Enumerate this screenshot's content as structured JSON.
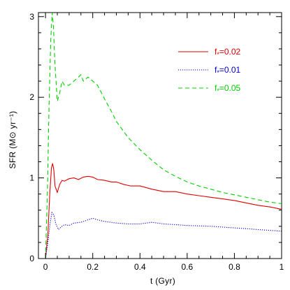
{
  "chart_data": {
    "type": "line",
    "title": "",
    "xlabel": "t  (Gyr)",
    "ylabel": "SFR  (M⊙ yr⁻¹)",
    "xlim": [
      -0.03,
      1.0
    ],
    "ylim": [
      0,
      3.05
    ],
    "xticks": [
      0,
      0.2,
      0.4,
      0.6,
      0.8,
      1
    ],
    "xticklabels": [
      "0",
      "0.2",
      "0.4",
      "0.6",
      "0.8",
      "1"
    ],
    "yticks": [
      0,
      1,
      2,
      3
    ],
    "yticklabels": [
      "0",
      "1",
      "2",
      "3"
    ],
    "grid": false,
    "legend_position": "top-right",
    "series": [
      {
        "name": "f*=0.02",
        "legend_base": "f",
        "legend_sub": "*",
        "legend_rest": "=0.02",
        "color": "#e00000",
        "dash": "solid",
        "x": [
          0.0,
          0.01,
          0.018,
          0.025,
          0.03,
          0.035,
          0.04,
          0.05,
          0.06,
          0.07,
          0.08,
          0.1,
          0.12,
          0.14,
          0.16,
          0.18,
          0.2,
          0.22,
          0.25,
          0.28,
          0.3,
          0.33,
          0.36,
          0.4,
          0.45,
          0.5,
          0.55,
          0.6,
          0.65,
          0.7,
          0.75,
          0.8,
          0.85,
          0.9,
          0.95,
          1.0
        ],
        "y": [
          0.0,
          0.3,
          0.8,
          1.12,
          1.18,
          1.1,
          0.9,
          0.82,
          0.92,
          0.97,
          0.96,
          0.99,
          1.0,
          0.98,
          1.01,
          1.02,
          1.01,
          0.98,
          0.97,
          0.95,
          0.95,
          0.92,
          0.9,
          0.9,
          0.86,
          0.83,
          0.83,
          0.8,
          0.78,
          0.76,
          0.74,
          0.72,
          0.69,
          0.66,
          0.64,
          0.61
        ]
      },
      {
        "name": "f*=0.01",
        "legend_base": "f",
        "legend_sub": "*",
        "legend_rest": "=0.01",
        "color": "#0000d0",
        "dash": "dotted",
        "x": [
          0.0,
          0.01,
          0.02,
          0.027,
          0.035,
          0.045,
          0.055,
          0.065,
          0.08,
          0.1,
          0.12,
          0.15,
          0.18,
          0.2,
          0.22,
          0.25,
          0.3,
          0.35,
          0.4,
          0.45,
          0.5,
          0.55,
          0.6,
          0.7,
          0.8,
          0.9,
          1.0
        ],
        "y": [
          0.0,
          0.2,
          0.45,
          0.57,
          0.54,
          0.42,
          0.36,
          0.39,
          0.42,
          0.41,
          0.44,
          0.45,
          0.48,
          0.5,
          0.48,
          0.46,
          0.44,
          0.43,
          0.43,
          0.45,
          0.43,
          0.42,
          0.41,
          0.4,
          0.38,
          0.36,
          0.34
        ]
      },
      {
        "name": "f*=0.05",
        "legend_base": "f",
        "legend_sub": "*",
        "legend_rest": "=0.05",
        "color": "#00d000",
        "dash": "dashed",
        "x": [
          0.0,
          0.008,
          0.015,
          0.022,
          0.028,
          0.033,
          0.04,
          0.05,
          0.06,
          0.07,
          0.08,
          0.1,
          0.12,
          0.14,
          0.15,
          0.16,
          0.18,
          0.2,
          0.22,
          0.25,
          0.28,
          0.3,
          0.35,
          0.4,
          0.45,
          0.5,
          0.55,
          0.6,
          0.65,
          0.7,
          0.75,
          0.8,
          0.85,
          0.9,
          0.95,
          1.0
        ],
        "y": [
          0.0,
          0.8,
          1.9,
          2.7,
          3.05,
          2.9,
          2.4,
          1.95,
          2.05,
          2.2,
          2.15,
          2.15,
          2.2,
          2.25,
          2.28,
          2.2,
          2.25,
          2.2,
          2.15,
          1.98,
          1.82,
          1.7,
          1.5,
          1.35,
          1.22,
          1.1,
          1.02,
          0.95,
          0.9,
          0.86,
          0.82,
          0.79,
          0.76,
          0.73,
          0.7,
          0.68
        ]
      }
    ]
  }
}
